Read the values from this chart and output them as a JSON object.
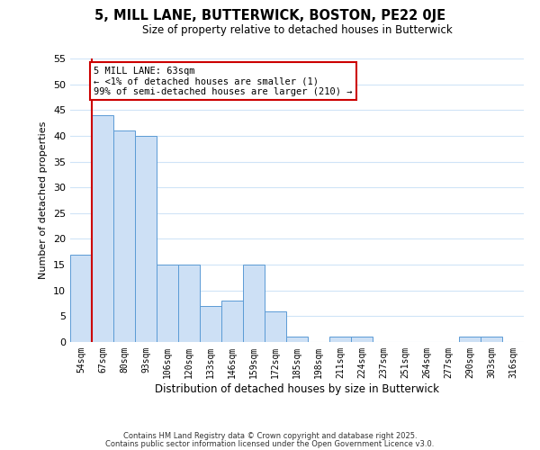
{
  "title": "5, MILL LANE, BUTTERWICK, BOSTON, PE22 0JE",
  "subtitle": "Size of property relative to detached houses in Butterwick",
  "xlabel": "Distribution of detached houses by size in Butterwick",
  "ylabel": "Number of detached properties",
  "bar_labels": [
    "54sqm",
    "67sqm",
    "80sqm",
    "93sqm",
    "106sqm",
    "120sqm",
    "133sqm",
    "146sqm",
    "159sqm",
    "172sqm",
    "185sqm",
    "198sqm",
    "211sqm",
    "224sqm",
    "237sqm",
    "251sqm",
    "264sqm",
    "277sqm",
    "290sqm",
    "303sqm",
    "316sqm"
  ],
  "bar_values": [
    17,
    44,
    41,
    40,
    15,
    15,
    7,
    8,
    15,
    6,
    1,
    0,
    1,
    1,
    0,
    0,
    0,
    0,
    1,
    1,
    0
  ],
  "bar_color": "#cde0f5",
  "bar_edge_color": "#5b9bd5",
  "grid_color": "#d0e4f7",
  "ylim": [
    0,
    55
  ],
  "yticks": [
    0,
    5,
    10,
    15,
    20,
    25,
    30,
    35,
    40,
    45,
    50,
    55
  ],
  "property_line_color": "#cc0000",
  "annotation_title": "5 MILL LANE: 63sqm",
  "annotation_line1": "← <1% of detached houses are smaller (1)",
  "annotation_line2": "99% of semi-detached houses are larger (210) →",
  "annotation_box_color": "#ffffff",
  "annotation_box_edge_color": "#cc0000",
  "footer1": "Contains HM Land Registry data © Crown copyright and database right 2025.",
  "footer2": "Contains public sector information licensed under the Open Government Licence v3.0."
}
